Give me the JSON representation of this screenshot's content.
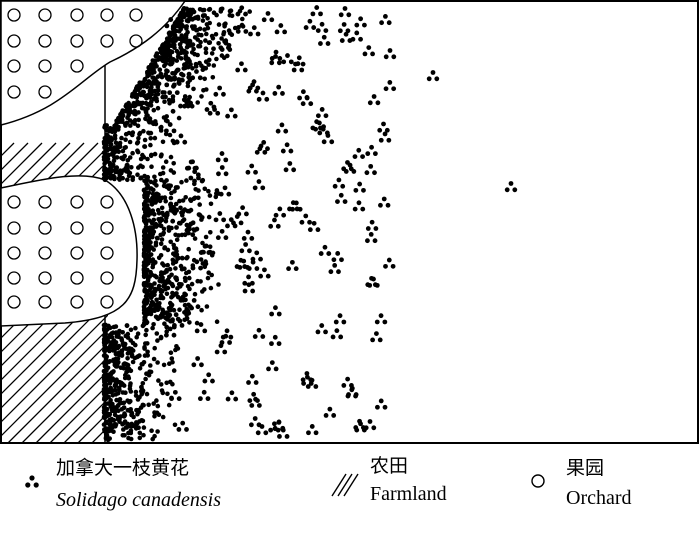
{
  "legend": {
    "solidago": {
      "label_zh": "加拿大一枝黄花",
      "label_latin": "Solidago canadensis",
      "icon": "three-dot-cluster-icon"
    },
    "farmland": {
      "label_zh": "农田",
      "label_en": "Farmland",
      "icon": "diagonal-hatch-icon"
    },
    "orchard": {
      "label_zh": "果园",
      "label_en": "Orchard",
      "icon": "open-circle-icon"
    }
  },
  "colors": {
    "ink": "#000000",
    "paper": "#ffffff"
  }
}
